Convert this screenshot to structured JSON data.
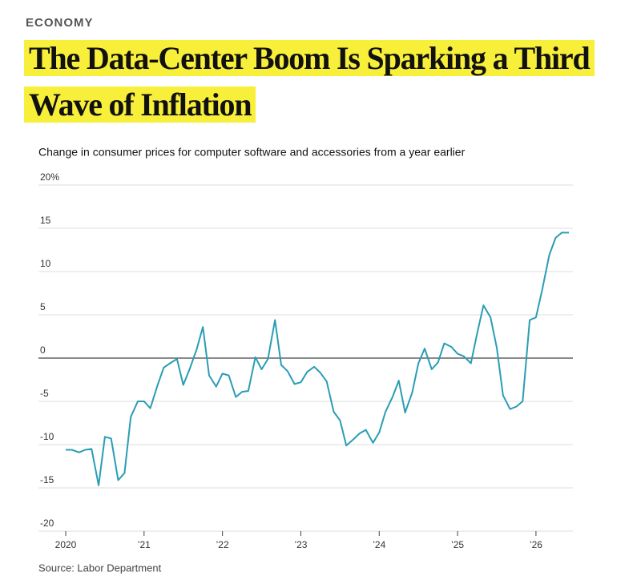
{
  "section": "ECONOMY",
  "headline": "The Data-Center Boom Is Sparking a Third Wave of Inflation",
  "chart_data": {
    "type": "line",
    "title": "Change in consumer prices for computer software and accessories from a year earlier",
    "source": "Source: Labor Department",
    "color": "#2a9db4",
    "x": [
      2020,
      2020.08,
      2020.17,
      2020.25,
      2020.33,
      2020.42,
      2020.5,
      2020.58,
      2020.67,
      2020.75,
      2020.83,
      2020.92,
      2021,
      2021.08,
      2021.17,
      2021.25,
      2021.33,
      2021.42,
      2021.5,
      2021.58,
      2021.67,
      2021.75,
      2021.83,
      2021.92,
      2022,
      2022.08,
      2022.17,
      2022.25,
      2022.33,
      2022.42,
      2022.5,
      2022.58,
      2022.67,
      2022.75,
      2022.83,
      2022.92,
      2023,
      2023.08,
      2023.17,
      2023.25,
      2023.33,
      2023.42,
      2023.5,
      2023.58,
      2023.67,
      2023.75,
      2023.83,
      2023.92,
      2024,
      2024.08,
      2024.17,
      2024.25,
      2024.33,
      2024.42,
      2024.5,
      2024.58,
      2024.67,
      2024.75,
      2024.83,
      2024.92,
      2025,
      2025.08,
      2025.17,
      2025.25,
      2025.33,
      2025.42,
      2025.5,
      2025.58,
      2025.67,
      2025.75,
      2025.83,
      2025.92,
      2026,
      2026.08,
      2026.17,
      2026.25,
      2026.33,
      2026.42
    ],
    "values": [
      -10.6,
      -10.6,
      -10.9,
      -10.6,
      -10.5,
      -14.7,
      -9.1,
      -9.3,
      -14.1,
      -13.3,
      -6.8,
      -5.0,
      -5.0,
      -5.8,
      -3.2,
      -1.1,
      -0.6,
      -0.1,
      -3.1,
      -1.3,
      1.0,
      3.6,
      -2.0,
      -3.3,
      -1.8,
      -2.0,
      -4.5,
      -3.9,
      -3.8,
      0.1,
      -1.3,
      -0.1,
      4.4,
      -0.8,
      -1.5,
      -3.0,
      -2.8,
      -1.6,
      -1.0,
      -1.7,
      -2.7,
      -6.2,
      -7.2,
      -10.1,
      -9.4,
      -8.7,
      -8.3,
      -9.8,
      -8.6,
      -6.2,
      -4.5,
      -2.6,
      -6.3,
      -4.0,
      -0.6,
      1.1,
      -1.3,
      -0.5,
      1.7,
      1.3,
      0.5,
      0.2,
      -0.6,
      2.9,
      6.1,
      4.7,
      1.2,
      -4.3,
      -5.9,
      -5.6,
      -5.0,
      4.4,
      4.7,
      7.9,
      11.9,
      13.9,
      14.5,
      14.5
    ],
    "xlim": [
      2020,
      2026.42
    ],
    "xticks": [
      2020,
      {
        "value": 2021,
        "label": "’21"
      },
      {
        "value": 2022,
        "label": "’22"
      },
      {
        "value": 2023,
        "label": "’23"
      },
      {
        "value": 2024,
        "label": "’24"
      },
      {
        "value": 2025,
        "label": "’25"
      },
      {
        "value": 2026,
        "label": "’26"
      }
    ],
    "ylim": [
      -20,
      20
    ],
    "yticks": [
      {
        "value": 20,
        "label": "20%"
      },
      15,
      10,
      5,
      0,
      -5,
      -10,
      -15,
      -20
    ],
    "grid": true
  }
}
